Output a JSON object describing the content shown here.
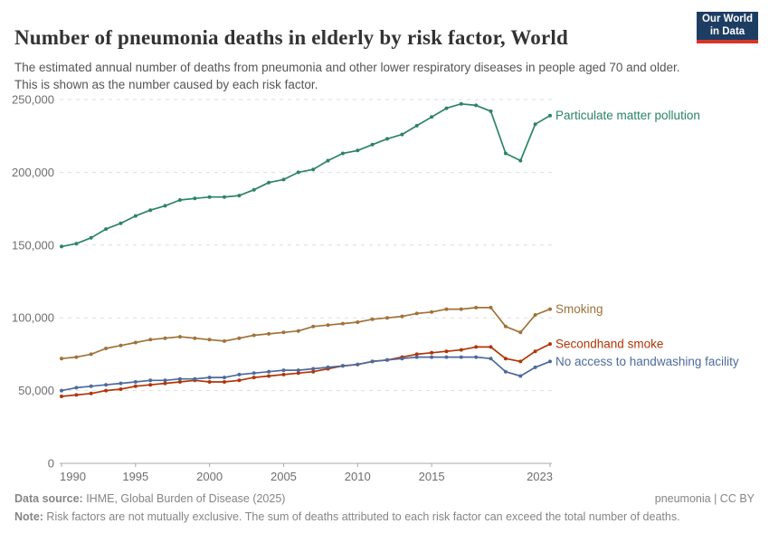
{
  "header": {
    "title": "Number of pneumonia deaths in elderly by risk factor, World",
    "subtitle": "The estimated annual number of deaths from pneumonia and other lower respiratory diseases in people aged 70 and older. This is shown as the number caused by each risk factor.",
    "logo": {
      "line1": "Our World",
      "line2": "in Data",
      "bg_color": "#1d3d63",
      "stripe_color": "#d8352a"
    }
  },
  "chart_data": {
    "type": "line",
    "x": [
      1990,
      1991,
      1992,
      1993,
      1994,
      1995,
      1996,
      1997,
      1998,
      1999,
      2000,
      2001,
      2002,
      2003,
      2004,
      2005,
      2006,
      2007,
      2008,
      2009,
      2010,
      2011,
      2012,
      2013,
      2014,
      2015,
      2016,
      2017,
      2018,
      2019,
      2020,
      2021,
      2022,
      2023
    ],
    "series": [
      {
        "name": "Particulate matter pollution",
        "color": "#2C8465",
        "values": [
          149000,
          151000,
          155000,
          161000,
          165000,
          170000,
          174000,
          177000,
          181000,
          182000,
          183000,
          183000,
          184000,
          188000,
          193000,
          195000,
          200000,
          202000,
          208000,
          213000,
          215000,
          219000,
          223000,
          226000,
          232000,
          238000,
          244000,
          247000,
          246000,
          242000,
          213000,
          208000,
          233000,
          239000
        ]
      },
      {
        "name": "Smoking",
        "color": "#A1723A",
        "values": [
          72000,
          73000,
          75000,
          79000,
          81000,
          83000,
          85000,
          86000,
          87000,
          86000,
          85000,
          84000,
          86000,
          88000,
          89000,
          90000,
          91000,
          94000,
          95000,
          96000,
          97000,
          99000,
          100000,
          101000,
          103000,
          104000,
          106000,
          106000,
          107000,
          107000,
          94000,
          90000,
          102000,
          106000
        ]
      },
      {
        "name": "Secondhand smoke",
        "color": "#B13507",
        "values": [
          46000,
          47000,
          48000,
          50000,
          51000,
          53000,
          54000,
          55000,
          56000,
          57000,
          56000,
          56000,
          57000,
          59000,
          60000,
          61000,
          62000,
          63000,
          65000,
          67000,
          68000,
          70000,
          71000,
          73000,
          75000,
          76000,
          77000,
          78000,
          80000,
          80000,
          72000,
          70000,
          77000,
          82000
        ]
      },
      {
        "name": "No access to handwashing facility",
        "color": "#4C6A9C",
        "values": [
          50000,
          52000,
          53000,
          54000,
          55000,
          56000,
          57000,
          57000,
          58000,
          58000,
          59000,
          59000,
          61000,
          62000,
          63000,
          64000,
          64000,
          65000,
          66000,
          67000,
          68000,
          70000,
          71000,
          72000,
          73000,
          73000,
          73000,
          73000,
          73000,
          72000,
          63000,
          60000,
          66000,
          70000
        ]
      }
    ],
    "ylim": [
      0,
      250000
    ],
    "yticks": [
      0,
      50000,
      100000,
      150000,
      200000,
      250000
    ],
    "xticks": [
      1990,
      1995,
      2000,
      2005,
      2010,
      2015,
      2023
    ],
    "grid": "dashed-horizontal",
    "legend_position": "end-of-line-labels",
    "grid_color": "#dedede",
    "axis_color": "#a8a8a8",
    "tick_label_color": "#6e6e6e"
  },
  "footer": {
    "datasource_label": "Data source:",
    "datasource_text": " IHME, Global Burden of Disease (2025)",
    "license": "pneumonia | CC BY",
    "note_label": "Note:",
    "note_text": " Risk factors are not mutually exclusive. The sum of deaths attributed to each risk factor can exceed the total number of deaths."
  }
}
